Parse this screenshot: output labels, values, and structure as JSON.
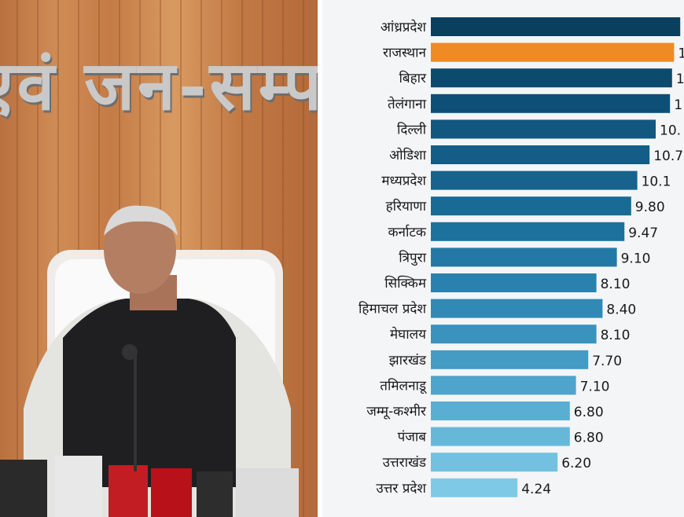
{
  "photo": {
    "sign_text": "एवं जन-सम्पर्क"
  },
  "chart_data": {
    "type": "bar",
    "orientation": "horizontal",
    "categories": [
      "आंध्रप्रदेश",
      "राजस्थान",
      "बिहार",
      "तेलंगाना",
      "दिल्ली",
      "ओडिशा",
      "मध्यप्रदेश",
      "हरियाणा",
      "कर्नाटक",
      "त्रिपुरा",
      "सिक्किम",
      "हिमाचल प्रदेश",
      "मेघालय",
      "झारखंड",
      "तमिलनाडू",
      "जम्मू-कश्मीर",
      "पंजाब",
      "उत्तराखंड",
      "उत्तर प्रदेश"
    ],
    "values": [
      null,
      null,
      null,
      null,
      null,
      null,
      null,
      9.8,
      9.47,
      9.1,
      8.1,
      8.4,
      8.1,
      7.7,
      7.1,
      6.8,
      6.8,
      6.2,
      4.24
    ],
    "value_labels": [
      "",
      "1",
      "1",
      "1",
      "10.",
      "10.7",
      "10.1",
      "9.80",
      "9.47",
      "9.10",
      "8.10",
      "8.40",
      "8.10",
      "7.70",
      "7.10",
      "6.80",
      "6.80",
      "6.20",
      "4.24"
    ],
    "estimated_values": [
      12.2,
      11.9,
      11.8,
      11.7,
      11.0,
      10.7,
      10.1,
      9.8,
      9.47,
      9.1,
      8.1,
      8.4,
      8.1,
      7.7,
      7.1,
      6.8,
      6.8,
      6.2,
      4.24
    ],
    "colors": [
      "#0a3f5e",
      "#f08a24",
      "#0c4a6e",
      "#0d4f76",
      "#11577f",
      "#135d86",
      "#16638d",
      "#196a95",
      "#1d719d",
      "#2279a6",
      "#2a81ae",
      "#3189b6",
      "#3a92bd",
      "#449bc4",
      "#4fa4cb",
      "#5aaed2",
      "#66b8d9",
      "#72c1e0",
      "#7ecae6"
    ],
    "highlight_category": "राजस्थान",
    "highlight_color": "#f08a24",
    "title": "",
    "xlabel": "",
    "ylabel": "",
    "grid": false,
    "legend": "none"
  }
}
